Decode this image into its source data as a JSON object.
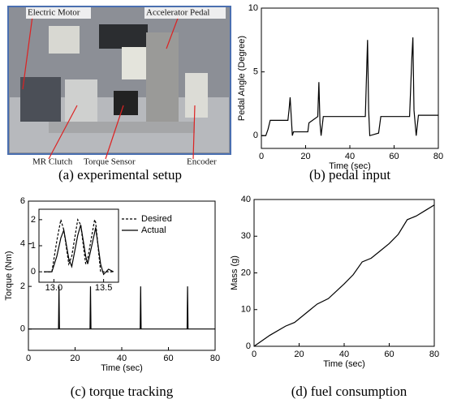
{
  "photo": {
    "labels": [
      "Electric Motor",
      "Accelerator Pedal",
      "MR Clutch",
      "Torque Sensor",
      "Encoder"
    ],
    "caption": "(a) experimental setup"
  },
  "chart_data": [
    {
      "type": "line",
      "caption": "(b) pedal input",
      "x_label": "Time (sec)",
      "y_label": "Pedal Angle (Degree)",
      "x": [
        0,
        2,
        3,
        4,
        12,
        12.5,
        13,
        13.5,
        14,
        14.5,
        21,
        21.5,
        25.5,
        26,
        26.5,
        27,
        28,
        47,
        48,
        48.5,
        49,
        53,
        54,
        67,
        68,
        68.5,
        69,
        70,
        71,
        80
      ],
      "series": [
        {
          "color": "#000000",
          "values": [
            0,
            0,
            0.5,
            1.2,
            1.2,
            2,
            3,
            1.5,
            0,
            0.3,
            0.3,
            1,
            1.5,
            4.2,
            1,
            0,
            1.5,
            1.5,
            7.5,
            2,
            0,
            0.2,
            1.5,
            1.5,
            6,
            7.7,
            2,
            0,
            1.6,
            1.6
          ]
        }
      ],
      "xlim": [
        0,
        80
      ],
      "xticks": [
        0,
        20,
        40,
        60,
        80
      ],
      "ylim": [
        -1,
        10
      ],
      "yticks": [
        0,
        5,
        10
      ]
    },
    {
      "type": "line",
      "caption": "(c) torque tracking",
      "x_label": "Time (sec)",
      "y_label": "Torque (Nm)",
      "x": [
        0,
        12.9,
        13.1,
        13.3,
        13.5,
        26.4,
        26.6,
        26.8,
        47.9,
        48.1,
        48.3,
        68.0,
        68.2,
        68.4,
        80
      ],
      "series": [
        {
          "color": "#000000",
          "values": [
            0,
            0,
            2,
            0,
            0,
            0,
            2,
            0,
            0,
            2,
            0,
            0,
            2,
            0,
            0
          ]
        }
      ],
      "xlim": [
        0,
        80
      ],
      "xticks": [
        0,
        20,
        40,
        60,
        80
      ],
      "ylim": [
        -1,
        6
      ],
      "yticks": [
        0,
        2,
        4,
        6
      ],
      "inset": {
        "type": "line",
        "legend": "upper right",
        "x": [
          12.9,
          12.98,
          13.03,
          13.07,
          13.1,
          13.15,
          13.18,
          13.24,
          13.27,
          13.32,
          13.34,
          13.41,
          13.42,
          13.47,
          13.5,
          13.55,
          13.6
        ],
        "series": [
          {
            "name": "Desired",
            "color": "#000000",
            "style": "dashed",
            "values": [
              0,
              0,
              1.2,
              2,
              1.6,
              0.3,
              0.6,
              2,
              1.8,
              0.3,
              0.5,
              2,
              1.9,
              0,
              0,
              0,
              0
            ]
          },
          {
            "name": "Actual",
            "color": "#000000",
            "style": "solid",
            "values": [
              0,
              0,
              0.6,
              1.3,
              1.6,
              0.5,
              0.2,
              1.4,
              1.8,
              0.6,
              0.3,
              1.5,
              1.7,
              0.3,
              -0.1,
              0.1,
              0
            ]
          }
        ],
        "xlim": [
          12.85,
          13.65
        ],
        "xticks": [
          {
            "value": 13,
            "label": "13.0"
          },
          {
            "value": 13.5,
            "label": "13.5"
          }
        ],
        "ylim": [
          -0.4,
          2.4
        ],
        "yticks": [
          0,
          1,
          2
        ]
      }
    },
    {
      "type": "line",
      "caption": "(d) fuel consumption",
      "x_label": "Time (sec)",
      "y_label": "Mass (g)",
      "x": [
        0,
        7,
        14,
        18,
        25,
        28,
        33,
        40,
        44,
        48,
        52,
        56,
        60,
        64,
        68,
        72,
        76,
        80
      ],
      "series": [
        {
          "color": "#000000",
          "values": [
            0,
            3,
            5.5,
            6.5,
            10,
            11.5,
            13,
            17,
            19.5,
            23,
            24,
            26,
            28,
            30.5,
            34.5,
            35.5,
            37,
            38.5
          ]
        }
      ],
      "xlim": [
        0,
        80
      ],
      "xticks": [
        0,
        20,
        40,
        60,
        80
      ],
      "ylim": [
        0,
        40
      ],
      "yticks": [
        0,
        10,
        20,
        30,
        40
      ]
    }
  ]
}
